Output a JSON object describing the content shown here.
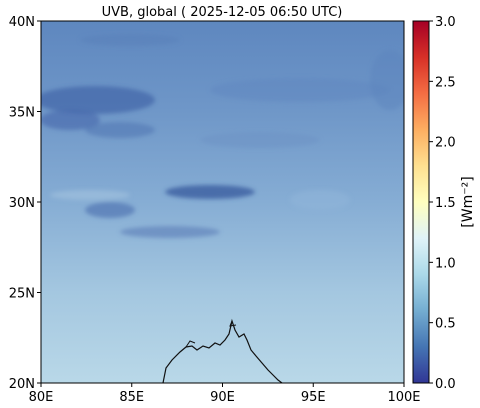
{
  "title": "UVB, global ( 2025-12-05 06:50 UTC)",
  "map": {
    "x_ticks": [
      {
        "value": 80,
        "label": "80E"
      },
      {
        "value": 85,
        "label": "85E"
      },
      {
        "value": 90,
        "label": "90E"
      },
      {
        "value": 95,
        "label": "95E"
      },
      {
        "value": 100,
        "label": "100E"
      }
    ],
    "y_ticks": [
      {
        "value": 20,
        "label": "20N"
      },
      {
        "value": 25,
        "label": "25N"
      },
      {
        "value": 30,
        "label": "30N"
      },
      {
        "value": 35,
        "label": "35N"
      },
      {
        "value": 40,
        "label": "40N"
      }
    ],
    "lon_range": [
      80,
      100
    ],
    "lat_range": [
      20,
      40
    ]
  },
  "colorbar": {
    "label": "[Wm⁻²]",
    "range": [
      0.0,
      3.0
    ],
    "ticks": [
      "0.0",
      "0.5",
      "1.0",
      "1.5",
      "2.0",
      "2.5",
      "3.0"
    ],
    "colormap": "RdYlBu_r",
    "colors": [
      "#313695",
      "#4575b4",
      "#74add1",
      "#abd9e9",
      "#e0f3f8",
      "#ffffbf",
      "#fee090",
      "#fdae61",
      "#f46d43",
      "#d73027",
      "#a50026"
    ]
  }
}
